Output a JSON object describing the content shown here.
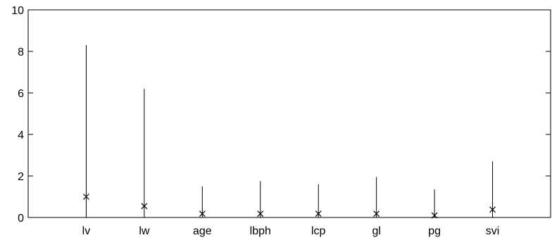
{
  "chart_data": {
    "type": "stem",
    "categories": [
      "lv",
      "lw",
      "age",
      "lbph",
      "lcp",
      "gl",
      "pg",
      "svi"
    ],
    "x": [
      1,
      2,
      3,
      4,
      5,
      6,
      7,
      8
    ],
    "series": [
      {
        "color": "#000000",
        "values": [
          8.3,
          6.2,
          1.5,
          1.75,
          1.6,
          1.95,
          1.35,
          2.7
        ]
      },
      {
        "color": "#000000",
        "values": [
          1.0,
          0.55,
          0.18,
          0.18,
          0.18,
          0.18,
          0.1,
          0.38
        ]
      }
    ],
    "xlim": [
      0,
      9
    ],
    "ylim": [
      0,
      10
    ],
    "yticks": [
      0,
      2,
      4,
      6,
      8,
      10
    ]
  }
}
